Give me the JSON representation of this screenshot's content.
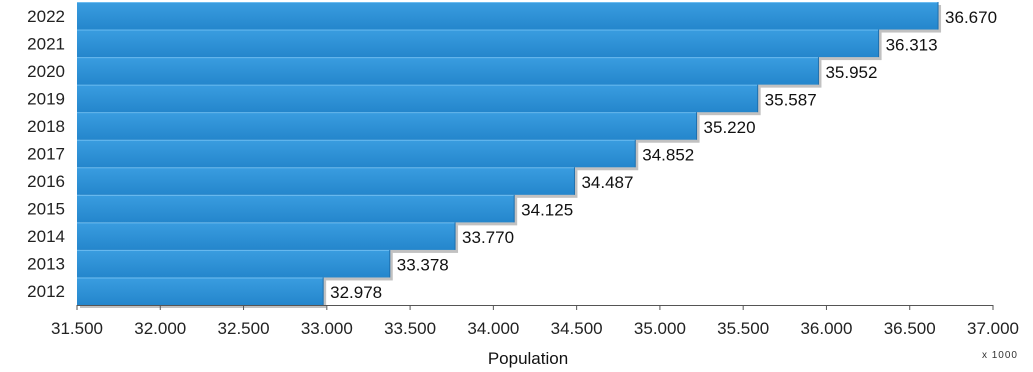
{
  "chart_data": {
    "type": "bar",
    "orientation": "horizontal",
    "categories": [
      "2012",
      "2013",
      "2014",
      "2015",
      "2016",
      "2017",
      "2018",
      "2019",
      "2020",
      "2021",
      "2022"
    ],
    "values": [
      32978,
      33378,
      33770,
      34125,
      34487,
      34852,
      35220,
      35587,
      35952,
      36313,
      36670
    ],
    "data_labels": [
      "32.978",
      "33.378",
      "33.770",
      "34.125",
      "34.487",
      "34.852",
      "35.220",
      "35.587",
      "35.952",
      "36.313",
      "36.670"
    ],
    "xlabel": "Population",
    "x_unit_label": "x 1000",
    "xlim": [
      31500,
      37000
    ],
    "x_ticks": [
      31500,
      32000,
      32500,
      33000,
      33500,
      34000,
      34500,
      35000,
      35500,
      36000,
      36500,
      37000
    ],
    "x_tick_labels": [
      "31.500",
      "32.000",
      "32.500",
      "33.000",
      "33.500",
      "34.000",
      "34.500",
      "35.000",
      "35.500",
      "36.000",
      "36.500",
      "37.000"
    ],
    "colors": {
      "bar": "#2a8fd4",
      "bar_edge": "#1d6fae",
      "shadow": "#8e8e8e"
    },
    "grid": false,
    "legend": "none"
  }
}
